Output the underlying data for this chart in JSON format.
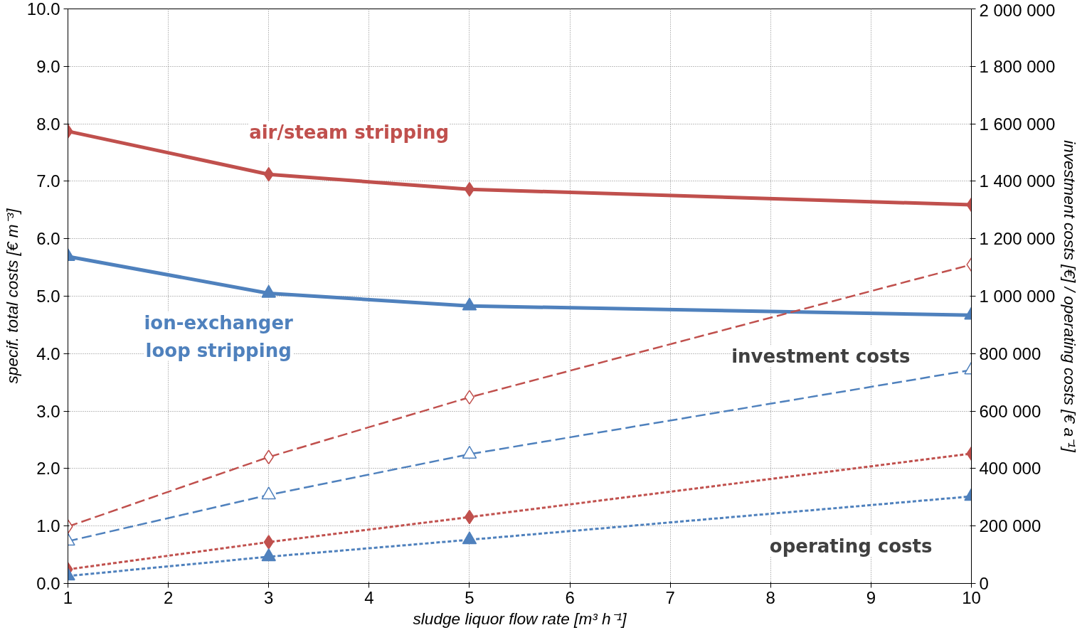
{
  "chart_data": {
    "type": "line",
    "xlabel": "sludge liquor flow rate [m³ h⁻¹]",
    "ylabel": "specif. total costs [€ m⁻³]",
    "y2label": "investment costs [€] / operating costs [€ a⁻¹]",
    "x": [
      1,
      3,
      5,
      10
    ],
    "series": [
      {
        "name": "air/steam stripping",
        "color": "#c0504d",
        "values": [
          7.87,
          7.12,
          6.86,
          6.59
        ],
        "marker": "diamond",
        "line_style": "solid"
      },
      {
        "name": "ion-exchanger\nloop stripping",
        "color": "#4f81bd",
        "values": [
          5.69,
          5.05,
          4.83,
          4.67
        ],
        "marker": "triangle",
        "line_style": "solid"
      },
      {
        "color": "#c0504d",
        "values": [
          198000,
          440000,
          648000,
          1110000
        ],
        "marker": "diamond",
        "line_style": "dashed",
        "axis": "y2"
      },
      {
        "color": "#4f81bd",
        "values": [
          147000,
          308000,
          450000,
          743000
        ],
        "marker": "triangle",
        "line_style": "dashed",
        "axis": "y2"
      },
      {
        "color": "#c0504d",
        "values": [
          49000,
          144000,
          231000,
          452000
        ],
        "marker": "diamond",
        "line_style": "dotted",
        "axis": "y2"
      },
      {
        "color": "#4f81bd",
        "values": [
          26000,
          93000,
          152000,
          303000
        ],
        "marker": "triangle",
        "line_style": "dotted",
        "axis": "y2"
      }
    ],
    "annotations": [
      "investment costs",
      "operating costs"
    ],
    "xlim": [
      1,
      10
    ],
    "xticks": [
      1,
      2,
      3,
      4,
      5,
      6,
      7,
      8,
      9,
      10
    ],
    "ylim": [
      0,
      10
    ],
    "yticks": [
      {
        "value": 0,
        "label": "0.0"
      },
      {
        "value": 1,
        "label": "1.0"
      },
      {
        "value": 2,
        "label": "2.0"
      },
      {
        "value": 3,
        "label": "3.0"
      },
      {
        "value": 4,
        "label": "4.0"
      },
      {
        "value": 5,
        "label": "5.0"
      },
      {
        "value": 6,
        "label": "6.0"
      },
      {
        "value": 7,
        "label": "7.0"
      },
      {
        "value": 8,
        "label": "8.0"
      },
      {
        "value": 9,
        "label": "9.0"
      },
      {
        "value": 10,
        "label": "10.0"
      }
    ],
    "y2lim": [
      0,
      2000000
    ],
    "y2ticks": [
      0,
      {
        "value": 200000,
        "label": "200 000"
      },
      {
        "value": 400000,
        "label": "400 000"
      },
      {
        "value": 600000,
        "label": "600 000"
      },
      {
        "value": 800000,
        "label": "800 000"
      },
      {
        "value": 1000000,
        "label": "1 000 000"
      },
      {
        "value": 1200000,
        "label": "1 200 000"
      },
      {
        "value": 1400000,
        "label": "1 400 000"
      },
      {
        "value": 1600000,
        "label": "1 600 000"
      },
      {
        "value": 1800000,
        "label": "1 800 000"
      },
      {
        "value": 2000000,
        "label": "2 000 000"
      }
    ],
    "grid": true
  }
}
